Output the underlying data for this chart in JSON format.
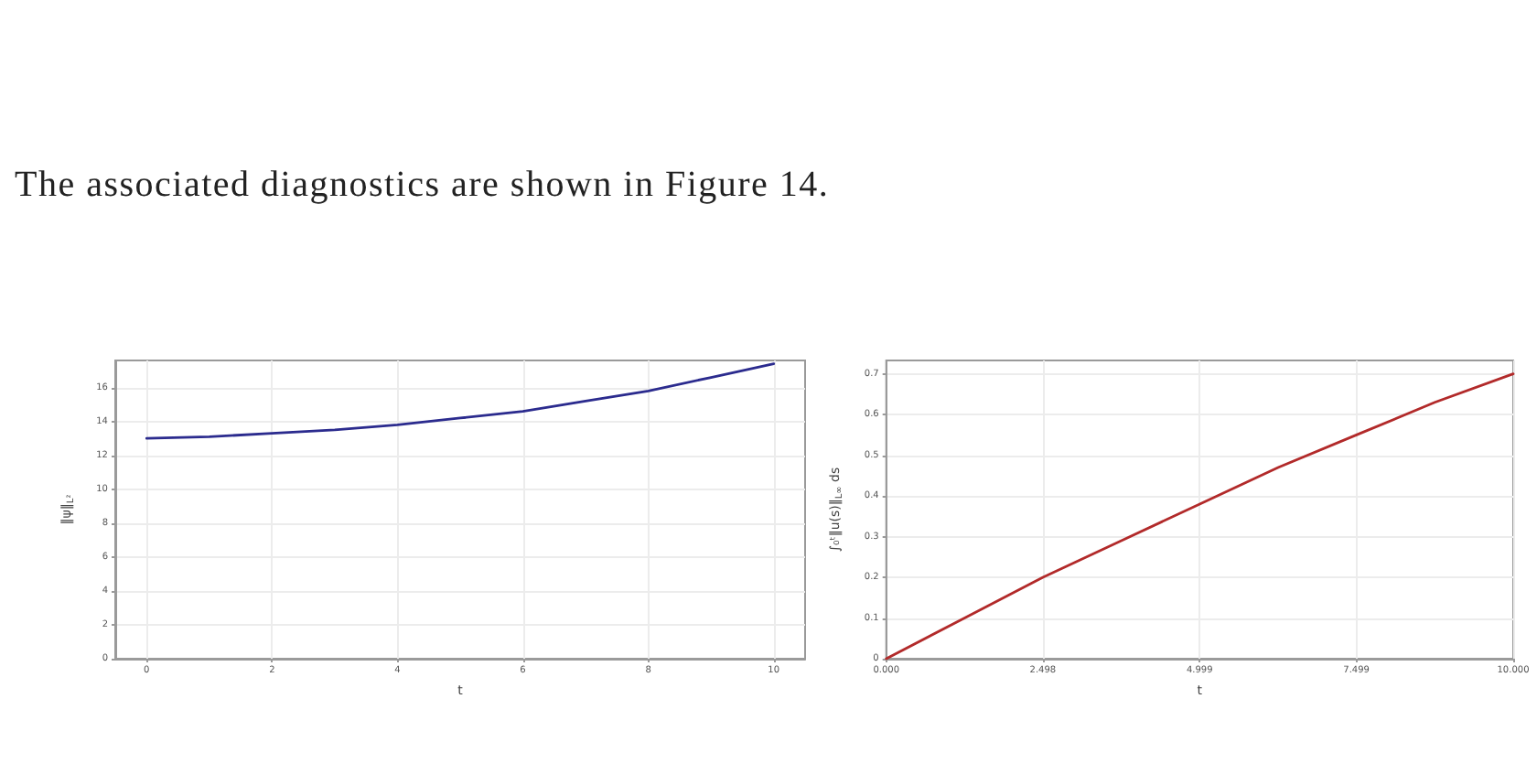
{
  "chart_data": [
    {
      "type": "line",
      "annotations": [
        "The associated diagnostics are shown in Figure 14."
      ],
      "xlabel": "t",
      "ylabel": "‖ψ‖$_{L²}$",
      "x": [
        0,
        1,
        2,
        3,
        4,
        5,
        6,
        7,
        8,
        9,
        10
      ],
      "series": [
        {
          "color": "#2b2b8e",
          "values": [
            13.0,
            13.1,
            13.3,
            13.5,
            13.8,
            14.2,
            14.6,
            15.2,
            15.8,
            16.6,
            17.4
          ]
        }
      ],
      "xlim": [
        -0.5,
        10.5
      ],
      "xticks": [
        0,
        2,
        4,
        6,
        8,
        10
      ],
      "ylim": [
        0,
        17.6
      ],
      "yticks": [
        0,
        2,
        4,
        6,
        8,
        10,
        12,
        14,
        16
      ],
      "grid": true,
      "marker": "none",
      "line_style": "solid"
    },
    {
      "type": "line",
      "xlabel": "t",
      "ylabel": "∫₀ᵗ‖u(s)‖$_{L∞}$ ds",
      "x": [
        0,
        1.25,
        2.5,
        3.75,
        5,
        6.25,
        7.5,
        8.75,
        10
      ],
      "series": [
        {
          "color": "#b22a2a",
          "values": [
            0,
            0.1,
            0.2,
            0.29,
            0.38,
            0.47,
            0.55,
            0.63,
            0.7
          ]
        }
      ],
      "xlim": [
        0,
        10
      ],
      "xticks": [
        {
          "value": 0,
          "label": "0.000"
        },
        2.498,
        4.999,
        7.499,
        {
          "value": 10,
          "label": "10.000"
        }
      ],
      "ylim": [
        0,
        0.733
      ],
      "yticks": [
        0,
        0.1,
        0.2,
        0.3,
        0.4,
        0.5,
        0.6,
        0.7
      ],
      "grid": true,
      "marker": "none",
      "line_style": "solid"
    }
  ]
}
